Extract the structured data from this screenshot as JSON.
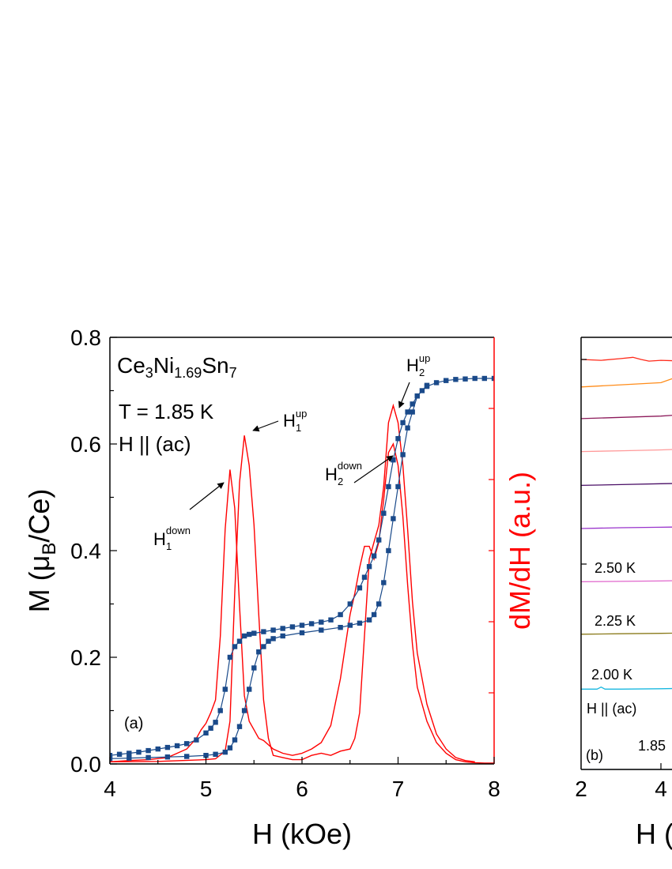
{
  "chart_data": [
    {
      "type": "line",
      "panel_label": "(a)",
      "sample": {
        "base": "Ce",
        "s1": "3",
        "mid": "Ni",
        "s2": "1.69",
        "end": "Sn",
        "s3": "7"
      },
      "annotation_temperature": "T = 1.85 K",
      "annotation_field": "H || (ac)",
      "xlabel": "H (kOe)",
      "ylabel_left": {
        "pre": "M (",
        "mu": "μ",
        "sub": "B",
        "post": "/Ce)"
      },
      "ylabel_right": "dM/dH (a.u.)",
      "xlim": [
        4,
        8
      ],
      "ylim_left": [
        0.0,
        0.8
      ],
      "ylim_right": [
        0,
        1
      ],
      "x_ticks": [
        "4",
        "5",
        "6",
        "7",
        "8"
      ],
      "y_ticks": [
        "0.0",
        "0.2",
        "0.4",
        "0.6",
        "0.8"
      ],
      "colors": {
        "magnetization": "#1a4a8a",
        "derivative": "#ff0000",
        "axis": "#000000"
      },
      "arrow_labels": [
        {
          "base": "H",
          "sub": "1",
          "sup": "up"
        },
        {
          "base": "H",
          "sub": "1",
          "sup": "down"
        },
        {
          "base": "H",
          "sub": "2",
          "sup": "up"
        },
        {
          "base": "H",
          "sub": "2",
          "sup": "down"
        }
      ],
      "series": [
        {
          "x": [
            4.0,
            4.1,
            4.2,
            4.3,
            4.4,
            4.5,
            4.6,
            4.7,
            4.8,
            4.9,
            5.0,
            5.05,
            5.1,
            5.15,
            5.2,
            5.25,
            5.3,
            5.35,
            5.4,
            5.45,
            5.5,
            5.6,
            5.7,
            5.8,
            5.9,
            6.0,
            6.1,
            6.2,
            6.3,
            6.4,
            6.5,
            6.6,
            6.65,
            6.7,
            6.75,
            6.8,
            6.85,
            6.9,
            6.95,
            7.0,
            7.05,
            7.1,
            7.15,
            7.2,
            7.25,
            7.3,
            7.4,
            7.5,
            7.6,
            7.7,
            7.8,
            7.9,
            8.0
          ],
          "values": [
            0.016,
            0.018,
            0.02,
            0.022,
            0.025,
            0.028,
            0.031,
            0.034,
            0.038,
            0.045,
            0.058,
            0.067,
            0.078,
            0.1,
            0.14,
            0.2,
            0.22,
            0.23,
            0.24,
            0.243,
            0.245,
            0.248,
            0.251,
            0.254,
            0.257,
            0.26,
            0.263,
            0.266,
            0.27,
            0.28,
            0.3,
            0.33,
            0.35,
            0.37,
            0.39,
            0.42,
            0.47,
            0.52,
            0.57,
            0.61,
            0.64,
            0.66,
            0.675,
            0.69,
            0.7,
            0.708,
            0.715,
            0.719,
            0.721,
            0.722,
            0.723,
            0.723,
            0.723
          ]
        },
        {
          "x": [
            4.0,
            4.2,
            4.4,
            4.6,
            4.8,
            5.0,
            5.1,
            5.2,
            5.25,
            5.3,
            5.35,
            5.4,
            5.45,
            5.5,
            5.55,
            5.6,
            5.65,
            5.7,
            5.8,
            6.0,
            6.2,
            6.4,
            6.5,
            6.6,
            6.7,
            6.75,
            6.8,
            6.85,
            6.9,
            6.95,
            7.0,
            7.05,
            7.1,
            7.15,
            7.2,
            7.3
          ],
          "values": [
            0.01,
            0.011,
            0.012,
            0.013,
            0.014,
            0.016,
            0.018,
            0.022,
            0.03,
            0.045,
            0.07,
            0.1,
            0.14,
            0.18,
            0.21,
            0.22,
            0.23,
            0.235,
            0.24,
            0.246,
            0.251,
            0.256,
            0.26,
            0.264,
            0.27,
            0.28,
            0.3,
            0.34,
            0.4,
            0.46,
            0.52,
            0.58,
            0.63,
            0.66,
            0.69,
            0.71
          ]
        },
        {
          "x": [
            4.0,
            4.2,
            4.4,
            4.6,
            4.8,
            4.9,
            4.95,
            5.0,
            5.05,
            5.1,
            5.15,
            5.2,
            5.25,
            5.3,
            5.35,
            5.4,
            5.45,
            5.5,
            5.55,
            5.6,
            5.7,
            5.8,
            5.9,
            6.0,
            6.1,
            6.2,
            6.3,
            6.4,
            6.5,
            6.55,
            6.6,
            6.65,
            6.7,
            6.75,
            6.8,
            6.85,
            6.9,
            6.95,
            7.0,
            7.05,
            7.1,
            7.15,
            7.2,
            7.3,
            7.4,
            7.5,
            7.6,
            7.7,
            7.8,
            7.9,
            8.0
          ],
          "values": [
            0.005,
            0.008,
            0.01,
            0.015,
            0.035,
            0.06,
            0.08,
            0.095,
            0.12,
            0.15,
            0.3,
            0.55,
            0.69,
            0.6,
            0.37,
            0.16,
            0.1,
            0.08,
            0.06,
            0.055,
            0.035,
            0.025,
            0.02,
            0.025,
            0.035,
            0.05,
            0.09,
            0.2,
            0.35,
            0.4,
            0.46,
            0.51,
            0.51,
            0.48,
            0.52,
            0.62,
            0.73,
            0.75,
            0.7,
            0.58,
            0.42,
            0.28,
            0.18,
            0.1,
            0.05,
            0.025,
            0.01,
            0.005,
            0.003,
            0.002,
            0.002
          ]
        },
        {
          "x": [
            4.0,
            4.5,
            5.0,
            5.1,
            5.2,
            5.25,
            5.3,
            5.35,
            5.4,
            5.45,
            5.5,
            5.55,
            5.6,
            5.65,
            5.7,
            5.8,
            5.9,
            6.0,
            6.1,
            6.2,
            6.3,
            6.4,
            6.5,
            6.55,
            6.6,
            6.65,
            6.7,
            6.75,
            6.8,
            6.85,
            6.9,
            6.95,
            7.0,
            7.05,
            7.1,
            7.15,
            7.2,
            7.3,
            7.4,
            7.5,
            7.6,
            7.7,
            7.8
          ],
          "values": [
            0.005,
            0.006,
            0.01,
            0.012,
            0.03,
            0.1,
            0.4,
            0.66,
            0.77,
            0.7,
            0.56,
            0.35,
            0.15,
            0.06,
            0.02,
            0.015,
            0.01,
            0.01,
            0.02,
            0.025,
            0.02,
            0.03,
            0.035,
            0.06,
            0.12,
            0.3,
            0.48,
            0.52,
            0.56,
            0.65,
            0.8,
            0.84,
            0.8,
            0.7,
            0.55,
            0.38,
            0.26,
            0.14,
            0.07,
            0.035,
            0.015,
            0.008,
            0.005
          ]
        }
      ]
    },
    {
      "type": "line",
      "panel_label": "(b)",
      "annotation_field": "H || (ac)",
      "xlabel": "H (",
      "x_ticks": [
        "2",
        "4"
      ],
      "curve_labels": [
        "2.50 K",
        "2.25 K",
        "2.00 K",
        "1.85"
      ],
      "colors": {
        "axis": "#000000"
      },
      "series": [
        {
          "color": "#ff2a1a",
          "x": [
            2.0,
            2.5,
            3.0,
            3.3,
            3.5,
            3.7,
            4.0,
            4.3,
            4.6
          ],
          "values": [
            0.97,
            0.968,
            0.972,
            0.975,
            0.97,
            0.966,
            0.968,
            0.967,
            0.969
          ]
        },
        {
          "color": "#ff8c1a",
          "x": [
            2.0,
            3.0,
            4.0,
            4.3,
            4.45,
            4.6
          ],
          "values": [
            0.905,
            0.91,
            0.915,
            0.925,
            0.94,
            0.945
          ]
        },
        {
          "color": "#8c1a5a",
          "x": [
            2.0,
            3.0,
            4.0,
            4.6
          ],
          "values": [
            0.83,
            0.833,
            0.836,
            0.84
          ]
        },
        {
          "color": "#ff9999",
          "x": [
            2.0,
            3.0,
            4.0,
            4.6
          ],
          "values": [
            0.752,
            0.754,
            0.756,
            0.758
          ]
        },
        {
          "color": "#4a0f66",
          "x": [
            2.0,
            3.0,
            4.0,
            4.6
          ],
          "values": [
            0.672,
            0.674,
            0.676,
            0.677
          ]
        },
        {
          "color": "#9933cc",
          "x": [
            2.0,
            3.0,
            4.0,
            4.6
          ],
          "values": [
            0.57,
            0.572,
            0.573,
            0.574
          ]
        },
        {
          "color": "#e066cc",
          "x": [
            2.0,
            3.0,
            4.0,
            4.6
          ],
          "values": [
            0.444,
            0.445,
            0.446,
            0.447
          ]
        },
        {
          "color": "#8a7a1a",
          "x": [
            2.0,
            3.0,
            4.0,
            4.6
          ],
          "values": [
            0.32,
            0.321,
            0.322,
            0.323
          ]
        },
        {
          "color": "#19b8e0",
          "x": [
            2.0,
            2.4,
            2.5,
            2.6,
            3.0,
            4.0,
            4.6
          ],
          "values": [
            0.19,
            0.19,
            0.195,
            0.19,
            0.19,
            0.191,
            0.192
          ]
        },
        {
          "color": "#1a3d66",
          "x": [
            2.0,
            3.0,
            4.0,
            4.6
          ],
          "values": [
            0.0,
            0.0,
            0.0,
            0.0
          ]
        }
      ]
    }
  ]
}
